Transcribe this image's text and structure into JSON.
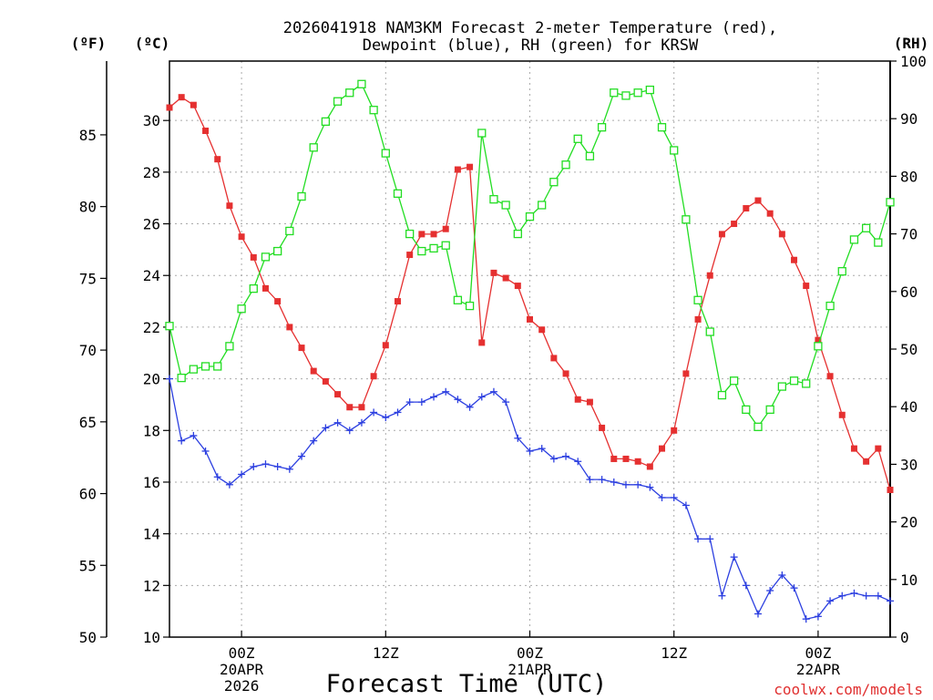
{
  "chart_data": {
    "type": "line",
    "title_lines": [
      "2026041918 NAM3KM Forecast 2-meter Temperature (red),",
      "Dewpoint (blue), RH (green) for KRSW"
    ],
    "axis_unit_labels": {
      "fahrenheit": "(ºF)",
      "celsius": "(ºC)",
      "rh": "(RH)"
    },
    "xlabel": "Forecast Time (UTC)",
    "credit": "coolwx.com/models",
    "ylim_celsius": [
      10,
      32.3
    ],
    "ylim_rh": [
      0,
      100
    ],
    "x_hours_range": [
      0,
      60
    ],
    "celsius_ticks": [
      10,
      12,
      14,
      16,
      18,
      20,
      22,
      24,
      26,
      28,
      30
    ],
    "celsius_tick_labels": [
      "10",
      "12",
      "14",
      "16",
      "18",
      "20",
      "22",
      "24",
      "26",
      "28",
      "30"
    ],
    "fahrenheit_ticks": [
      50,
      55,
      60,
      65,
      70,
      75,
      80,
      85
    ],
    "fahrenheit_tick_labels": [
      "50",
      "55",
      "60",
      "65",
      "70",
      "75",
      "80",
      "85"
    ],
    "rh_ticks": [
      0,
      10,
      20,
      30,
      40,
      50,
      60,
      70,
      80,
      90,
      100
    ],
    "rh_tick_labels": [
      "0",
      "10",
      "20",
      "30",
      "40",
      "50",
      "60",
      "70",
      "80",
      "90",
      "100"
    ],
    "x_ticks": [
      {
        "hour": 6,
        "lines": [
          "00Z",
          "20APR",
          "2026"
        ]
      },
      {
        "hour": 18,
        "lines": [
          "12Z"
        ]
      },
      {
        "hour": 30,
        "lines": [
          "00Z",
          "21APR"
        ]
      },
      {
        "hour": 42,
        "lines": [
          "12Z"
        ]
      },
      {
        "hour": 54,
        "lines": [
          "00Z",
          "22APR"
        ]
      }
    ],
    "x_hours": [
      0,
      1,
      2,
      3,
      4,
      5,
      6,
      7,
      8,
      9,
      10,
      11,
      12,
      13,
      14,
      15,
      16,
      17,
      18,
      19,
      20,
      21,
      22,
      23,
      24,
      25,
      26,
      27,
      28,
      29,
      30,
      31,
      32,
      33,
      34,
      35,
      36,
      37,
      38,
      39,
      40,
      41,
      42,
      43,
      44,
      45,
      46,
      47,
      48,
      49,
      50,
      51,
      52,
      53,
      54,
      55,
      56,
      57,
      58,
      59,
      60
    ],
    "series": [
      {
        "name": "2-meter Temperature",
        "axis": "celsius",
        "color": "#e53030",
        "marker": "filled-square",
        "values": [
          30.5,
          30.9,
          30.6,
          29.6,
          28.5,
          26.7,
          25.5,
          24.7,
          23.5,
          23.0,
          22.0,
          21.2,
          20.3,
          19.9,
          19.4,
          18.9,
          18.9,
          20.1,
          21.3,
          23.0,
          24.8,
          25.6,
          25.6,
          25.8,
          28.1,
          28.2,
          21.4,
          24.1,
          23.9,
          23.6,
          22.3,
          21.9,
          20.8,
          20.2,
          19.2,
          19.1,
          18.1,
          16.9,
          16.9,
          16.8,
          16.6,
          17.3,
          18.0,
          20.2,
          22.3,
          24.0,
          25.6,
          26.0,
          26.6,
          26.9,
          26.4,
          25.6,
          24.6,
          23.6,
          21.5,
          20.1,
          18.6,
          17.3,
          16.8,
          17.3,
          15.7
        ]
      },
      {
        "name": "Dewpoint",
        "axis": "celsius",
        "color": "#2c3fe0",
        "marker": "plus",
        "values": [
          20.0,
          17.6,
          17.8,
          17.2,
          16.2,
          15.9,
          16.3,
          16.6,
          16.7,
          16.6,
          16.5,
          17.0,
          17.6,
          18.1,
          18.3,
          18.0,
          18.3,
          18.7,
          18.5,
          18.7,
          19.1,
          19.1,
          19.3,
          19.5,
          19.2,
          18.9,
          19.3,
          19.5,
          19.1,
          17.7,
          17.2,
          17.3,
          16.9,
          17.0,
          16.8,
          16.1,
          16.1,
          16.0,
          15.9,
          15.9,
          15.8,
          15.4,
          15.4,
          15.1,
          13.8,
          13.8,
          11.6,
          13.1,
          12.0,
          10.9,
          11.8,
          12.4,
          11.9,
          10.7,
          10.8,
          11.4,
          11.6,
          11.7,
          11.6,
          11.6,
          11.4
        ]
      },
      {
        "name": "RH",
        "axis": "rh",
        "color": "#22dd22",
        "marker": "open-square",
        "values": [
          54,
          45,
          46.5,
          47,
          47,
          50.5,
          57,
          60.5,
          66,
          67,
          70.5,
          76.5,
          85,
          89.5,
          93,
          94.5,
          96,
          91.5,
          84,
          77,
          70,
          67,
          67.5,
          68,
          58.5,
          57.5,
          87.5,
          76,
          75,
          70,
          73,
          75,
          79,
          82,
          86.5,
          83.5,
          88.5,
          94.5,
          94,
          94.5,
          95,
          88.5,
          84.5,
          72.5,
          58.5,
          53,
          42,
          44.5,
          39.5,
          36.5,
          39.5,
          43.5,
          44.5,
          44,
          50.5,
          57.5,
          63.5,
          69,
          71,
          68.5,
          75.5
        ]
      }
    ]
  }
}
